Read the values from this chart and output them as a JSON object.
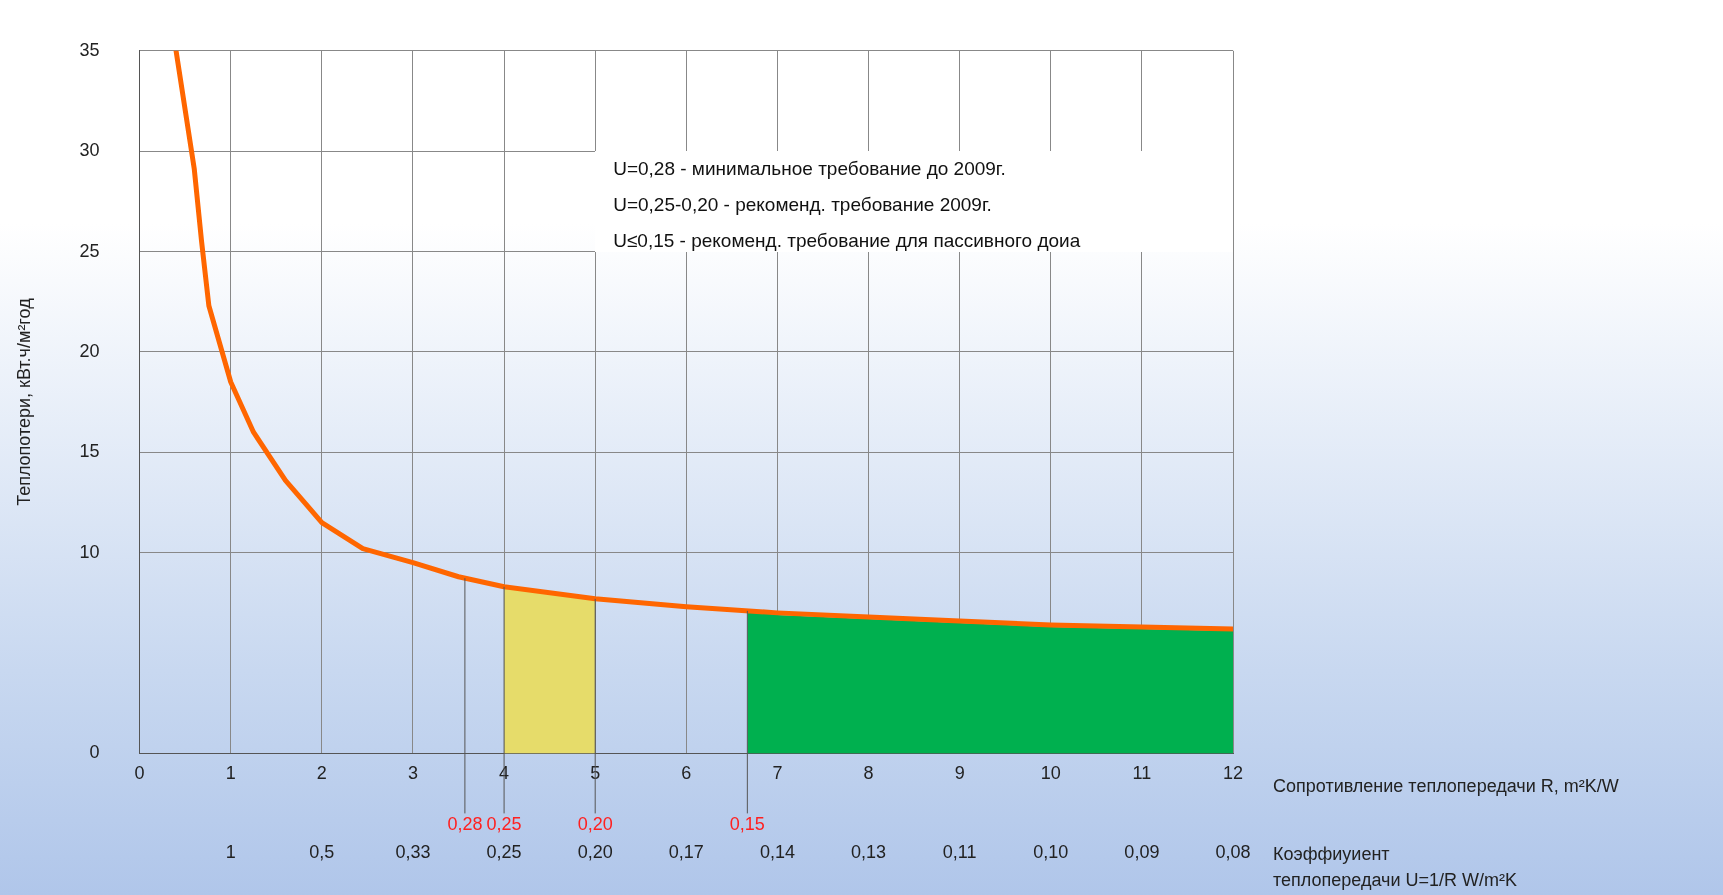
{
  "chart_data": {
    "type": "line",
    "ylabel": "Теплопотери, кВт.ч/м²год",
    "xlabel": "Сопротивление теплопередачи R, m²K/W",
    "x2label": "Коэффиуиент теплопередачи U=1/R W/m²K",
    "x": [
      0.4,
      0.6,
      0.68,
      0.76,
      1,
      1.25,
      1.6,
      2,
      2.45,
      3,
      3.5,
      4,
      5,
      6,
      7,
      8,
      9,
      10,
      11,
      12
    ],
    "series": [
      {
        "color": "#ff6600",
        "values": [
          35,
          29.1,
          25.5,
          22.3,
          18.5,
          16,
          13.6,
          11.5,
          10.2,
          9.5,
          8.8,
          8.3,
          7.7,
          7.3,
          7,
          6.8,
          6.6,
          6.4,
          6.3,
          6.2
        ]
      },
      {
        "type": "area",
        "color": "#e6dc6a",
        "x": [
          4,
          5
        ],
        "values": [
          8.3,
          7.7
        ]
      },
      {
        "type": "area",
        "color": "#00b04f",
        "x": [
          6.67,
          7,
          8,
          9,
          10,
          11,
          12
        ],
        "values": [
          7.1,
          6.9,
          6.7,
          6.5,
          6.3,
          6.2,
          6.1
        ]
      }
    ],
    "xlim": [
      0,
      12
    ],
    "xticks": [
      0,
      1,
      2,
      3,
      4,
      5,
      6,
      7,
      8,
      9,
      10,
      11,
      12
    ],
    "ylim": [
      0,
      35
    ],
    "yticks": [
      0,
      10,
      15,
      20,
      25,
      30,
      35
    ],
    "ref_lines": [
      {
        "axis": "x",
        "value": 3.57,
        "color": "#555555"
      },
      {
        "axis": "x",
        "value": 4,
        "color": "#555555"
      },
      {
        "axis": "x",
        "value": 5,
        "color": "#555555"
      },
      {
        "axis": "x",
        "value": 6.67,
        "color": "#555555"
      }
    ],
    "annotations": [
      "U=0,28 - минимальное требование до 2009г.",
      "U=0,25-0,20 - рекоменд. требование 2009г.",
      "U≤0,15 - рекоменд. требование для пассивного доиа",
      "0,28",
      "0,25",
      "0,20",
      "0,15",
      "1",
      "0,5",
      "0,33",
      "0,25",
      "0,20",
      "0,17",
      "0,14",
      "0,13",
      "0,11",
      "0,10",
      "0,09",
      "0,08"
    ],
    "grid": true,
    "legend": false,
    "marker": "none",
    "line_style": "solid"
  }
}
